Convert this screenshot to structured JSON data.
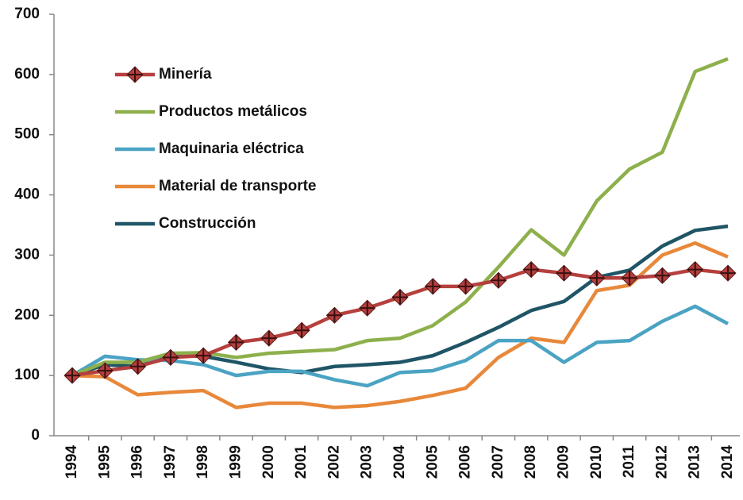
{
  "chart_data": {
    "type": "line",
    "categories": [
      "1994",
      "1995",
      "1996",
      "1997",
      "1998",
      "1999",
      "2000",
      "2001",
      "2002",
      "2003",
      "2004",
      "2005",
      "2006",
      "2007",
      "2008",
      "2009",
      "2010",
      "2011",
      "2012",
      "2013",
      "2014"
    ],
    "series": [
      {
        "name": "Minería",
        "color": "#b5403e",
        "marker": true,
        "values": [
          100,
          108,
          115,
          130,
          133,
          155,
          162,
          175,
          200,
          212,
          230,
          248,
          248,
          258,
          276,
          270,
          262,
          262,
          266,
          276,
          270
        ]
      },
      {
        "name": "Productos metálicos",
        "color": "#8db04c",
        "values": [
          100,
          122,
          122,
          137,
          138,
          130,
          137,
          140,
          143,
          158,
          162,
          183,
          222,
          280,
          342,
          300,
          390,
          443,
          471,
          605,
          626
        ]
      },
      {
        "name": "Maquinaria eléctrica",
        "color": "#4ba3c3",
        "values": [
          100,
          132,
          126,
          125,
          118,
          100,
          107,
          107,
          93,
          83,
          105,
          108,
          125,
          158,
          158,
          122,
          155,
          158,
          190,
          215,
          186
        ]
      },
      {
        "name": "Material de transporte",
        "color": "#e8883a",
        "values": [
          100,
          98,
          68,
          72,
          75,
          47,
          54,
          54,
          47,
          50,
          57,
          67,
          79,
          130,
          162,
          155,
          241,
          250,
          300,
          320,
          297
        ]
      },
      {
        "name": "Construcción",
        "color": "#1f5566",
        "values": [
          100,
          118,
          115,
          133,
          132,
          122,
          111,
          105,
          115,
          118,
          122,
          133,
          155,
          180,
          208,
          223,
          263,
          275,
          315,
          341,
          348
        ]
      }
    ],
    "ylim": [
      0,
      700
    ],
    "yticks": [
      0,
      100,
      200,
      300,
      400,
      500,
      600,
      700
    ],
    "grid": false,
    "legend": "upper left"
  }
}
